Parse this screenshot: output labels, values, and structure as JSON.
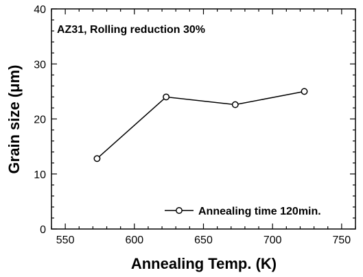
{
  "chart_data": {
    "type": "line",
    "annotation": "AZ31, Rolling reduction 30%",
    "xlabel": "Annealing Temp. (K)",
    "ylabel": "Grain size (μm)",
    "xlim": [
      540,
      760
    ],
    "ylim": [
      0,
      40
    ],
    "xticks": [
      550,
      600,
      650,
      700,
      750
    ],
    "yticks": [
      0,
      10,
      20,
      30,
      40
    ],
    "legend_position": "bottom-right",
    "series": [
      {
        "name": "Annealing time 120min.",
        "x": [
          573,
          623,
          673,
          723
        ],
        "y": [
          12.8,
          24.0,
          22.6,
          25.0
        ],
        "marker": "open-circle",
        "color": "#000000"
      }
    ]
  }
}
